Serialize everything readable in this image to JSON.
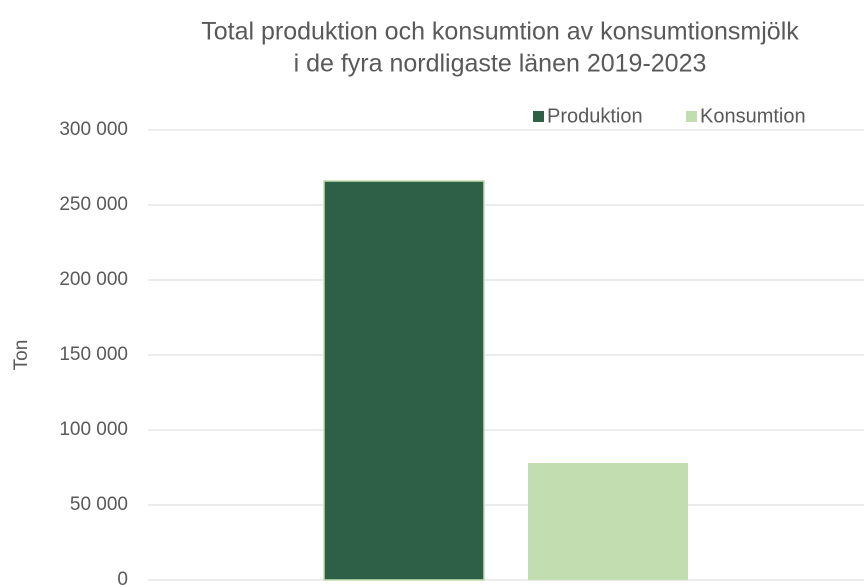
{
  "chart_data": {
    "type": "bar",
    "title": [
      "Total produktion och konsumtion av konsumtionsmjölk",
      "i de fyra nordligaste länen 2019-2023"
    ],
    "y_label": "Ton",
    "categories": [
      null
    ],
    "series": [
      {
        "name": "Produktion",
        "color": "#2e6048",
        "values": [
          266000
        ]
      },
      {
        "name": "Konsumtion",
        "color": "#c2ddb0",
        "values": [
          78000
        ]
      }
    ],
    "ylim": [
      0,
      300000
    ],
    "yticks": [
      {
        "value": 0,
        "label": "0"
      },
      {
        "value": 50000,
        "label": "50 000"
      },
      {
        "value": 100000,
        "label": "100 000"
      },
      {
        "value": 150000,
        "label": "150 000"
      },
      {
        "value": 200000,
        "label": "200 000"
      },
      {
        "value": 250000,
        "label": "250 000"
      },
      {
        "value": 300000,
        "label": "300 000"
      }
    ],
    "grid": true,
    "legend": "top-right"
  }
}
